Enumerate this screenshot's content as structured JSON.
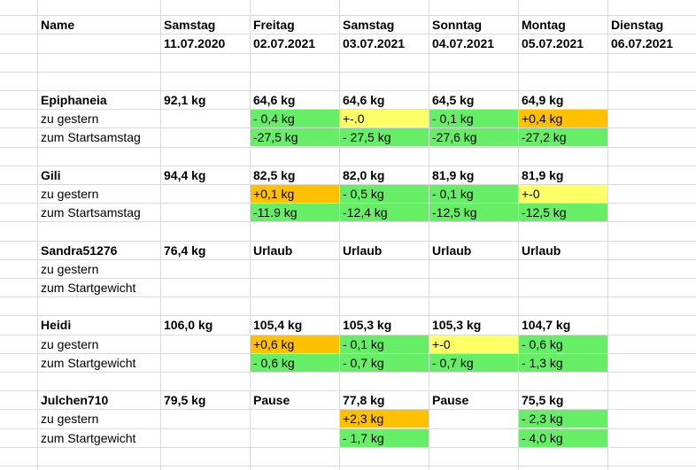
{
  "header": {
    "name": "Name",
    "days": [
      {
        "day": "Samstag",
        "date": "11.07.2020"
      },
      {
        "day": "Freitag",
        "date": "02.07.2021"
      },
      {
        "day": "Samstag",
        "date": "03.07.2021"
      },
      {
        "day": "Sonntag",
        "date": "04.07.2021"
      },
      {
        "day": "Montag",
        "date": "05.07.2021"
      },
      {
        "day": "Dienstag",
        "date": "06.07.2021"
      }
    ]
  },
  "colors": {
    "green": "#66ee66",
    "yellow": "#ffff66",
    "orange": "#ffc000",
    "grid": "#d9d9d9"
  },
  "people": [
    {
      "name": "Epiphaneia",
      "rows": [
        {
          "label": "",
          "cells": [
            {
              "v": "92,1 kg"
            },
            {
              "v": "64,6 kg"
            },
            {
              "v": "64,6 kg"
            },
            {
              "v": "64,5 kg"
            },
            {
              "v": "64,9 kg"
            },
            {
              "v": ""
            }
          ]
        },
        {
          "label": "zu gestern",
          "cells": [
            {
              "v": ""
            },
            {
              "v": "- 0,4 kg",
              "c": "green"
            },
            {
              "v": "+-.0",
              "c": "yellow"
            },
            {
              "v": "- 0,1 kg",
              "c": "green"
            },
            {
              "v": "+0,4 kg",
              "c": "orange"
            },
            {
              "v": ""
            }
          ]
        },
        {
          "label": "zum Startsamstag",
          "cells": [
            {
              "v": ""
            },
            {
              "v": "-27,5 kg",
              "c": "green"
            },
            {
              "v": "- 27,5 kg",
              "c": "green"
            },
            {
              "v": "-27,6 kg",
              "c": "green"
            },
            {
              "v": "-27,2 kg",
              "c": "green"
            },
            {
              "v": ""
            }
          ]
        }
      ]
    },
    {
      "name": "Gili",
      "rows": [
        {
          "label": "",
          "cells": [
            {
              "v": "94,4 kg"
            },
            {
              "v": "82,5 kg"
            },
            {
              "v": "82,0 kg"
            },
            {
              "v": "81,9 kg"
            },
            {
              "v": "81,9 kg"
            },
            {
              "v": ""
            }
          ]
        },
        {
          "label": "zu gestern",
          "cells": [
            {
              "v": ""
            },
            {
              "v": "+0,1 kg",
              "c": "orange"
            },
            {
              "v": "- 0,5 kg",
              "c": "green"
            },
            {
              "v": "- 0,1 kg",
              "c": "green"
            },
            {
              "v": "+-0",
              "c": "yellow"
            },
            {
              "v": ""
            }
          ]
        },
        {
          "label": "zum Startsamstag",
          "cells": [
            {
              "v": ""
            },
            {
              "v": "-11.9 kg",
              "c": "green"
            },
            {
              "v": "-12,4 kg",
              "c": "green"
            },
            {
              "v": "-12,5 kg",
              "c": "green"
            },
            {
              "v": "-12,5 kg",
              "c": "green"
            },
            {
              "v": ""
            }
          ]
        }
      ]
    },
    {
      "name": "Sandra51276",
      "rows": [
        {
          "label": "",
          "cells": [
            {
              "v": "76,4 kg"
            },
            {
              "v": "Urlaub"
            },
            {
              "v": "Urlaub"
            },
            {
              "v": "Urlaub"
            },
            {
              "v": "Urlaub"
            },
            {
              "v": ""
            }
          ]
        },
        {
          "label": "zu gestern",
          "cells": [
            {
              "v": ""
            },
            {
              "v": ""
            },
            {
              "v": ""
            },
            {
              "v": ""
            },
            {
              "v": ""
            },
            {
              "v": ""
            }
          ]
        },
        {
          "label": "zum Startgewicht",
          "cells": [
            {
              "v": ""
            },
            {
              "v": ""
            },
            {
              "v": ""
            },
            {
              "v": ""
            },
            {
              "v": ""
            },
            {
              "v": ""
            }
          ]
        }
      ]
    },
    {
      "name": "Heidi",
      "rows": [
        {
          "label": "",
          "cells": [
            {
              "v": "106,0 kg"
            },
            {
              "v": "105,4 kg"
            },
            {
              "v": "105,3 kg"
            },
            {
              "v": "105,3 kg"
            },
            {
              "v": "104,7 kg"
            },
            {
              "v": ""
            }
          ]
        },
        {
          "label": "zu gestern",
          "cells": [
            {
              "v": ""
            },
            {
              "v": "+0,6 kg",
              "c": "orange"
            },
            {
              "v": "- 0,1 kg",
              "c": "green"
            },
            {
              "v": "+-0",
              "c": "yellow"
            },
            {
              "v": "- 0,6 kg",
              "c": "green"
            },
            {
              "v": ""
            }
          ]
        },
        {
          "label": "zum Startgewicht",
          "cells": [
            {
              "v": ""
            },
            {
              "v": "- 0,6 kg",
              "c": "green"
            },
            {
              "v": "- 0,7 kg",
              "c": "green"
            },
            {
              "v": "- 0,7 kg",
              "c": "green"
            },
            {
              "v": "- 1,3 kg",
              "c": "green"
            },
            {
              "v": ""
            }
          ]
        }
      ]
    },
    {
      "name": "Julchen710",
      "rows": [
        {
          "label": "",
          "cells": [
            {
              "v": "79,5 kg"
            },
            {
              "v": "Pause"
            },
            {
              "v": "77,8 kg"
            },
            {
              "v": "Pause"
            },
            {
              "v": "75,5 kg"
            },
            {
              "v": ""
            }
          ]
        },
        {
          "label": "zu gestern",
          "cells": [
            {
              "v": ""
            },
            {
              "v": ""
            },
            {
              "v": "+2,3 kg",
              "c": "orange"
            },
            {
              "v": ""
            },
            {
              "v": "- 2,3 kg",
              "c": "green"
            },
            {
              "v": ""
            }
          ]
        },
        {
          "label": "zum Startgewicht",
          "cells": [
            {
              "v": ""
            },
            {
              "v": ""
            },
            {
              "v": "- 1,7 kg",
              "c": "green"
            },
            {
              "v": ""
            },
            {
              "v": "- 4,0 kg",
              "c": "green"
            },
            {
              "v": ""
            }
          ]
        }
      ]
    }
  ]
}
